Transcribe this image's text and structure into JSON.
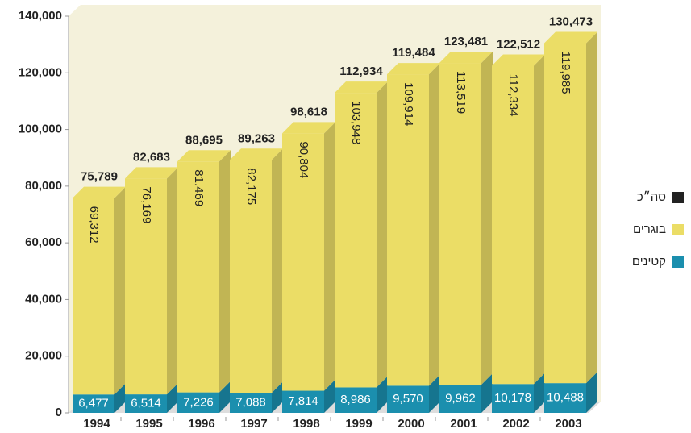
{
  "chart_data": {
    "type": "stacked-bar-3d",
    "categories": [
      "1994",
      "1995",
      "1996",
      "1997",
      "1998",
      "1999",
      "2000",
      "2001",
      "2002",
      "2003"
    ],
    "series": [
      {
        "name": "קטינים",
        "color": "#1b8fae",
        "values": [
          6477,
          6514,
          7226,
          7088,
          7814,
          8986,
          9570,
          9962,
          10178,
          10488
        ],
        "value_labels": [
          "6,477",
          "6,514",
          "7,226",
          "7,088",
          "7,814",
          "8,986",
          "9,570",
          "9,962",
          "10,178",
          "10,488"
        ]
      },
      {
        "name": "בוגרים",
        "color": "#ebdd66",
        "values": [
          69312,
          76169,
          81469,
          82175,
          90804,
          103948,
          109914,
          113519,
          112334,
          119985
        ],
        "value_labels": [
          "69,312",
          "76,169",
          "81,469",
          "82,175",
          "90,804",
          "103,948",
          "109,914",
          "113,519",
          "112,334",
          "119,985"
        ]
      },
      {
        "name": "סה״כ",
        "color": "#222222",
        "role": "total",
        "values": [
          75789,
          82683,
          88695,
          89263,
          98618,
          112934,
          119484,
          123481,
          122512,
          130473
        ],
        "value_labels": [
          "75,789",
          "82,683",
          "88,695",
          "89,263",
          "98,618",
          "112,934",
          "119,484",
          "123,481",
          "122,512",
          "130,473"
        ]
      }
    ],
    "ylim": [
      0,
      140000
    ],
    "yticks": [
      0,
      {
        "value": 20000,
        "label": "20,000"
      },
      {
        "value": 40000,
        "label": "40,000"
      },
      {
        "value": 60000,
        "label": "60,000"
      },
      {
        "value": 80000,
        "label": "80,000"
      },
      {
        "value": 100000,
        "label": "100,000"
      },
      {
        "value": 120000,
        "label": "120,000"
      },
      {
        "value": 140000,
        "label": "140,000"
      }
    ],
    "legend": "right"
  }
}
